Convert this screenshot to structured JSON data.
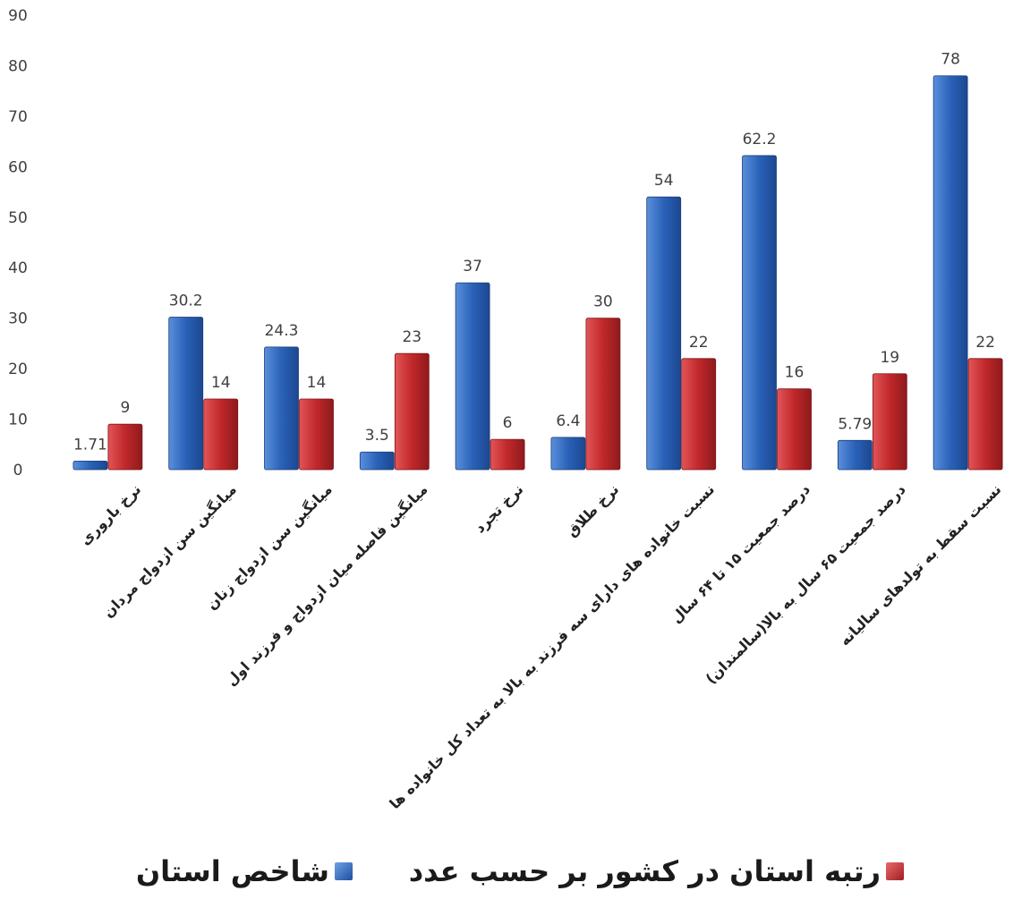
{
  "chart_data": {
    "type": "bar",
    "categories": [
      "نرخ باروری",
      "میانگین سن ازدواج مردان",
      "میانگین سن ازدواج زنان",
      "میانگین فاصله میان ازدواج و فرزند اول",
      "نرخ تجرد",
      "نرخ طلاق",
      "نسبت خانواده های دارای سه فرزند به بالا به تعداد کل خانواده ها",
      "درصد جمعیت ۱۵ تا ۶۴ سال",
      "درصد جمعیت ۶۵ سال به بالا(سالمندان)",
      "نسبت سقط به تولدهای سالیانه"
    ],
    "series": [
      {
        "name": "شاخص استان",
        "color": "#2F6DC6",
        "values": [
          1.71,
          30.2,
          24.3,
          3.5,
          37,
          6.4,
          54,
          62.2,
          5.79,
          78
        ],
        "labels": [
          "1.71",
          "30.2",
          "24.3",
          "3.5",
          "37",
          "6.4",
          "54",
          "62.2",
          "5.79",
          "78"
        ]
      },
      {
        "name": "رتبه استان در کشور بر حسب عدد",
        "color": "#C62B2E",
        "values": [
          9,
          14,
          14,
          23,
          6,
          30,
          22,
          16,
          19,
          22
        ],
        "labels": [
          "9",
          "14",
          "14",
          "23",
          "6",
          "30",
          "22",
          "16",
          "19",
          "22"
        ]
      }
    ],
    "ylim": [
      0,
      90
    ],
    "yticks": [
      "0",
      "10",
      "20",
      "30",
      "40",
      "50",
      "60",
      "70",
      "80",
      "90"
    ],
    "grid": false,
    "legend_position": "bottom"
  }
}
